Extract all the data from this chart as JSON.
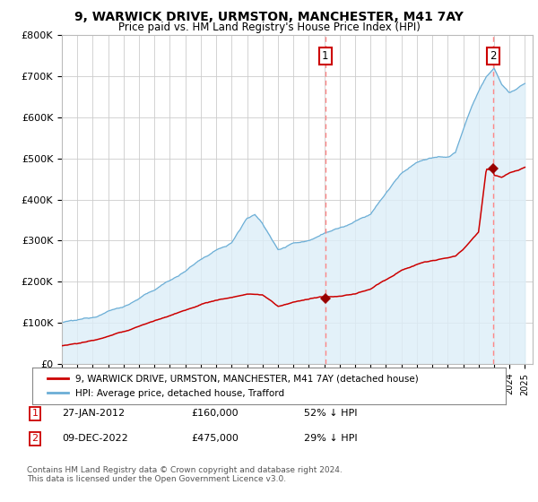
{
  "title": "9, WARWICK DRIVE, URMSTON, MANCHESTER, M41 7AY",
  "subtitle": "Price paid vs. HM Land Registry's House Price Index (HPI)",
  "legend_line1": "9, WARWICK DRIVE, URMSTON, MANCHESTER, M41 7AY (detached house)",
  "legend_line2": "HPI: Average price, detached house, Trafford",
  "annotation1_date": "27-JAN-2012",
  "annotation1_price": "£160,000",
  "annotation1_note": "52% ↓ HPI",
  "annotation2_date": "09-DEC-2022",
  "annotation2_price": "£475,000",
  "annotation2_note": "29% ↓ HPI",
  "footer": "Contains HM Land Registry data © Crown copyright and database right 2024.\nThis data is licensed under the Open Government Licence v3.0.",
  "hpi_color": "#6baed6",
  "hpi_fill_color": "#ddeef8",
  "price_color": "#cc0000",
  "marker_color": "#990000",
  "vline_color": "#ff8888",
  "plot_bg_color": "#ffffff",
  "ylim": [
    0,
    800000
  ],
  "xlim_start": 1995.0,
  "xlim_end": 2025.5,
  "sale1_x": 2012.07,
  "sale1_y": 160000,
  "sale2_x": 2022.94,
  "sale2_y": 475000,
  "hpi_key_years": [
    1995,
    1996,
    1997,
    1998,
    1999,
    2000,
    2001,
    2002,
    2003,
    2004,
    2005,
    2006,
    2007,
    2007.5,
    2008,
    2008.5,
    2009,
    2009.5,
    2010,
    2011,
    2012,
    2013,
    2014,
    2015,
    2016,
    2017,
    2018,
    2019,
    2020,
    2020.5,
    2021,
    2021.5,
    2022,
    2022.5,
    2023,
    2023.5,
    2024,
    2024.5,
    2025
  ],
  "hpi_key_vals": [
    100000,
    106000,
    115000,
    128000,
    140000,
    158000,
    180000,
    205000,
    225000,
    255000,
    275000,
    295000,
    355000,
    365000,
    340000,
    310000,
    280000,
    285000,
    295000,
    300000,
    320000,
    330000,
    345000,
    365000,
    415000,
    465000,
    490000,
    500000,
    505000,
    515000,
    570000,
    620000,
    665000,
    700000,
    720000,
    680000,
    660000,
    670000,
    680000
  ],
  "price_key_years": [
    1995,
    1996,
    1997,
    1998,
    1999,
    2000,
    2001,
    2002,
    2003,
    2004,
    2005,
    2006,
    2007,
    2008,
    2008.5,
    2009,
    2009.5,
    2010,
    2011,
    2012,
    2013,
    2014,
    2015,
    2016,
    2017,
    2018,
    2019,
    2020,
    2020.5,
    2021,
    2021.5,
    2022,
    2022.5,
    2022.94,
    2023,
    2023.5,
    2024,
    2024.5,
    2025
  ],
  "price_key_vals": [
    45000,
    50000,
    57000,
    67000,
    78000,
    92000,
    105000,
    118000,
    130000,
    145000,
    155000,
    162000,
    170000,
    168000,
    155000,
    140000,
    145000,
    150000,
    158000,
    163000,
    165000,
    170000,
    182000,
    205000,
    228000,
    242000,
    252000,
    257000,
    262000,
    280000,
    300000,
    320000,
    475000,
    473000,
    460000,
    455000,
    465000,
    470000,
    478000
  ]
}
